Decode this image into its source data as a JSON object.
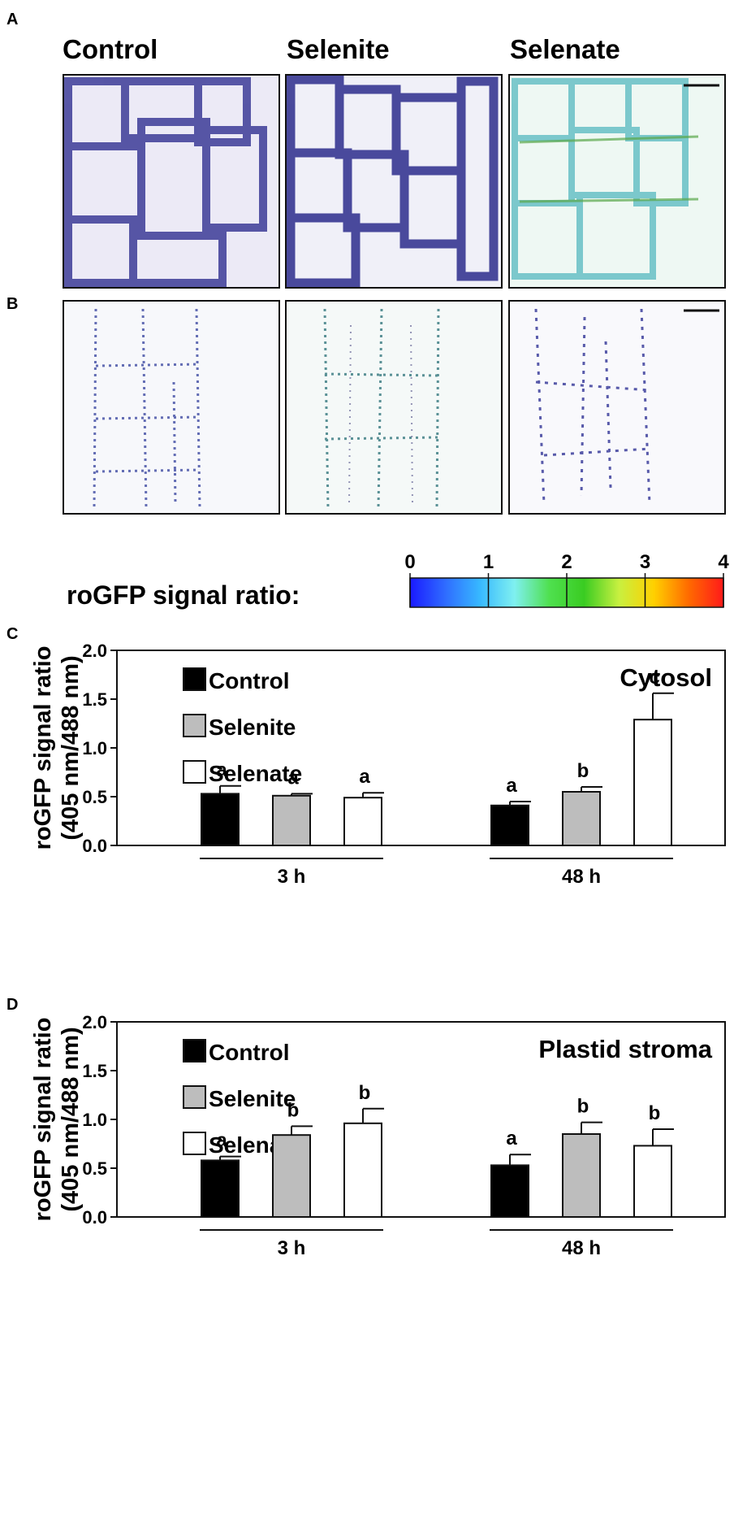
{
  "panels": {
    "A": {
      "label": "A",
      "columns": [
        "Control",
        "Selenite",
        "Selenate"
      ]
    },
    "B": {
      "label": "B"
    },
    "C": {
      "label": "C"
    },
    "D": {
      "label": "D"
    }
  },
  "colorbar": {
    "label": "roGFP signal ratio:",
    "ticks": [
      "0",
      "1",
      "2",
      "3",
      "4"
    ],
    "stops": [
      "#1a1aff",
      "#2f6bff",
      "#37b8ff",
      "#7ff0f0",
      "#4fe04f",
      "#3acc22",
      "#c8f040",
      "#ffd000",
      "#ff6a00",
      "#ff1a1a"
    ]
  },
  "colors": {
    "control": "#000000",
    "selenite": "#bdbdbd",
    "selenate": "#ffffff"
  },
  "chart_data": [
    {
      "type": "bar",
      "panel": "C",
      "title": "Cytosol",
      "ylabel": "roGFP signal ratio",
      "ylabel2": "(405 nm/488 nm)",
      "ylim": [
        0,
        2
      ],
      "yticks": [
        "0.0",
        "0.5",
        "1.0",
        "1.5",
        "2.0"
      ],
      "ytick_values": [
        0,
        0.5,
        1.0,
        1.5,
        2.0
      ],
      "categories": [
        "3 h",
        "48 h"
      ],
      "legend": [
        "Control",
        "Selenite",
        "Selenate"
      ],
      "series": [
        {
          "name": "Control",
          "values": [
            0.53,
            0.41
          ],
          "errors": [
            0.08,
            0.04
          ],
          "letters": [
            "a",
            "a"
          ]
        },
        {
          "name": "Selenite",
          "values": [
            0.51,
            0.55
          ],
          "errors": [
            0.02,
            0.05
          ],
          "letters": [
            "a",
            "b"
          ]
        },
        {
          "name": "Selenate",
          "values": [
            0.49,
            1.29
          ],
          "errors": [
            0.05,
            0.27
          ],
          "letters": [
            "a",
            "c"
          ]
        }
      ]
    },
    {
      "type": "bar",
      "panel": "D",
      "title": "Plastid stroma",
      "ylabel": "roGFP signal ratio",
      "ylabel2": "(405 nm/488 nm)",
      "ylim": [
        0,
        2
      ],
      "yticks": [
        "0.0",
        "0.5",
        "1.0",
        "1.5",
        "2.0"
      ],
      "ytick_values": [
        0,
        0.5,
        1.0,
        1.5,
        2.0
      ],
      "categories": [
        "3 h",
        "48 h"
      ],
      "legend": [
        "Control",
        "Selenite",
        "Selenate"
      ],
      "series": [
        {
          "name": "Control",
          "values": [
            0.58,
            0.53
          ],
          "errors": [
            0.04,
            0.11
          ],
          "letters": [
            "a",
            "a"
          ]
        },
        {
          "name": "Selenite",
          "values": [
            0.84,
            0.85
          ],
          "errors": [
            0.09,
            0.12
          ],
          "letters": [
            "b",
            "b"
          ]
        },
        {
          "name": "Selenate",
          "values": [
            0.96,
            0.73
          ],
          "errors": [
            0.15,
            0.17
          ],
          "letters": [
            "b",
            "b"
          ]
        }
      ]
    }
  ]
}
